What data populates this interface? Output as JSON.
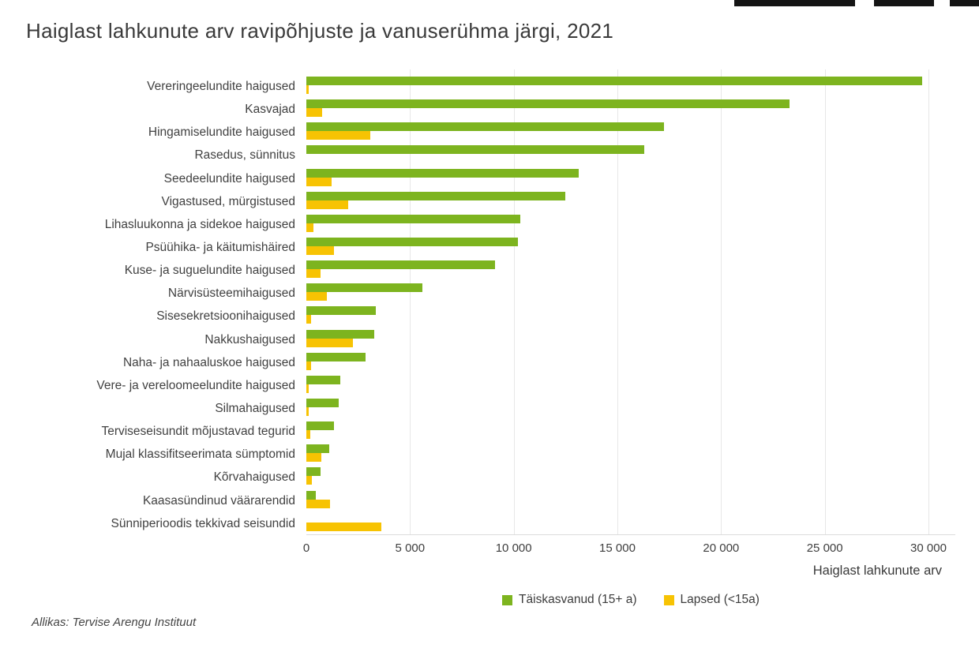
{
  "page": {
    "title": "Haiglast lahkunute arv ravipõhjuste ja vanuserühma järgi, 2021",
    "source": "Allikas: Tervise Arengu Instituut"
  },
  "chart_data": {
    "type": "bar",
    "orientation": "horizontal",
    "title": "Haiglast lahkunute arv ravipõhjuste ja vanuserühma järgi, 2021",
    "xlabel": "Haiglast lahkunute arv",
    "ylabel": "",
    "xlim": [
      0,
      30000
    ],
    "xticks": [
      0,
      5000,
      10000,
      15000,
      20000,
      25000,
      30000
    ],
    "xtick_labels": [
      "0",
      "5 000",
      "10 000",
      "15 000",
      "20 000",
      "25 000",
      "30 000"
    ],
    "grid": "vertical-light",
    "legend_position": "bottom-center",
    "source": "Allikas: Tervise Arengu Instituut",
    "categories": [
      "Vereringeelundite haigused",
      "Kasvajad",
      "Hingamiselundite haigused",
      "Rasedus, sünnitus",
      "Seedeelundite haigused",
      "Vigastused, mürgistused",
      "Lihasluukonna ja sidekoe haigused",
      "Psüühika- ja käitumishäired",
      "Kuse- ja suguelundite haigused",
      "Närvisüsteemihaigused",
      "Sisesekretsioonihaigused",
      "Nakkushaigused",
      "Naha- ja nahaaluskoe haigused",
      "Vere- ja vereloomeelundite haigused",
      "Silmahaigused",
      "Terviseseisundit mõjustavad tegurid",
      "Mujal klassifitseerimata sümptomid",
      "Kõrvahaigused",
      "Kaasasündinud väärarendid",
      "Sünniperioodis tekkivad seisundid"
    ],
    "series": [
      {
        "name": "Täiskasvanud (15+ a)",
        "color": "#7db41f",
        "values": [
          29700,
          23300,
          17250,
          16300,
          13150,
          12500,
          10300,
          10200,
          9100,
          5600,
          3360,
          3280,
          2850,
          1630,
          1550,
          1350,
          1090,
          700,
          460,
          0
        ]
      },
      {
        "name": "Lapsed (<15a)",
        "color": "#f7c303",
        "values": [
          110,
          770,
          3070,
          0,
          1200,
          2000,
          360,
          1350,
          680,
          980,
          240,
          2230,
          230,
          120,
          100,
          180,
          730,
          280,
          1150,
          3630
        ]
      }
    ]
  }
}
